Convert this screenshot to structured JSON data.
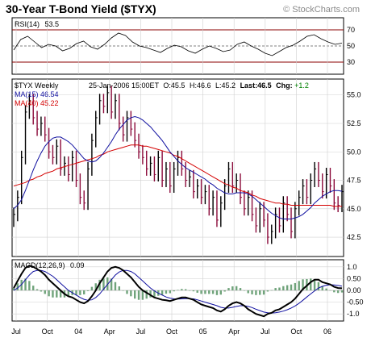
{
  "chart_data": {
    "type": "line",
    "title": "30-Year T-Bond Yield ($TYX)",
    "watermark": "© StockCharts.com",
    "x_ticks": [
      "Jul",
      "Oct",
      "04",
      "Apr",
      "Jul",
      "Oct",
      "05",
      "Apr",
      "Jul",
      "Oct",
      "06"
    ],
    "rsi": {
      "label": "RSI(14)",
      "value": "53.5",
      "ticks": [
        "70",
        "50",
        "30"
      ],
      "levels": [
        70,
        50,
        30
      ],
      "ylim": [
        15,
        85
      ],
      "values": [
        45,
        58,
        62,
        55,
        48,
        52,
        50,
        44,
        47,
        53,
        56,
        49,
        46,
        52,
        60,
        66,
        63,
        55,
        50,
        48,
        45,
        42,
        47,
        51,
        49,
        44,
        41,
        46,
        50,
        47,
        43,
        45,
        52,
        55,
        50,
        46,
        41,
        38,
        43,
        48,
        51,
        56,
        62,
        64,
        59,
        55,
        52,
        53.5
      ]
    },
    "price": {
      "label": "$TYX Weekly",
      "date": "25-Jan-2006 15:00ET",
      "open_label": "O:45.5",
      "high_label": "H:46.6",
      "low_label": "L:45.2",
      "last_label": "Last:46.5",
      "chg_label": "Chg:",
      "chg_value": "+1.2",
      "ma15_label": "MA(15) 46.54",
      "ma40_label": "MA(40) 45.22",
      "y_ticks": [
        "55.0",
        "52.5",
        "50.0",
        "47.5",
        "45.0",
        "42.5"
      ],
      "ylim": [
        40.8,
        56.4
      ],
      "close": [
        44.5,
        46.0,
        49.5,
        53.5,
        54.5,
        53.0,
        52.0,
        52.5,
        51.5,
        50.0,
        49.5,
        50.5,
        48.5,
        49.0,
        48.0,
        49.5,
        47.5,
        46.0,
        45.5,
        48.5,
        51.0,
        53.0,
        54.5,
        54.0,
        55.2,
        53.5,
        54.5,
        52.5,
        51.5,
        53.0,
        52.0,
        51.0,
        50.0,
        49.5,
        48.5,
        49.0,
        48.0,
        49.5,
        47.5,
        48.5,
        47.0,
        48.5,
        49.5,
        48.5,
        47.5,
        47.8,
        46.5,
        47.0,
        46.0,
        46.5,
        45.0,
        46.0,
        44.0,
        45.5,
        47.0,
        48.5,
        47.0,
        47.5,
        46.0,
        45.0,
        46.0,
        44.5,
        43.5,
        45.0,
        44.0,
        42.5,
        43.0,
        44.5,
        43.5,
        45.5,
        44.5,
        43.0,
        45.0,
        46.0,
        47.0,
        46.0,
        47.5,
        48.5,
        47.5,
        46.5,
        48.0,
        47.0,
        45.5,
        45.3,
        46.5
      ],
      "ma15": [
        45.0,
        45.3,
        45.8,
        46.6,
        47.5,
        48.4,
        49.2,
        49.9,
        50.5,
        50.9,
        51.2,
        51.3,
        51.3,
        51.1,
        50.9,
        50.6,
        50.2,
        49.8,
        49.4,
        49.2,
        49.1,
        49.2,
        49.5,
        49.9,
        50.4,
        50.9,
        51.5,
        52.0,
        52.4,
        52.8,
        53.0,
        53.1,
        53.0,
        52.8,
        52.5,
        52.2,
        51.8,
        51.4,
        51.0,
        50.5,
        50.0,
        49.6,
        49.2,
        48.9,
        48.6,
        48.4,
        48.2,
        48.0,
        47.8,
        47.6,
        47.3,
        47.1,
        46.8,
        46.6,
        46.4,
        46.3,
        46.3,
        46.4,
        46.4,
        46.4,
        46.3,
        46.1,
        45.8,
        45.5,
        45.2,
        44.9,
        44.6,
        44.4,
        44.2,
        44.1,
        44.1,
        44.1,
        44.2,
        44.3,
        44.5,
        44.8,
        45.1,
        45.5,
        45.8,
        46.1,
        46.3,
        46.5,
        46.6,
        46.6,
        46.54
      ],
      "ma40": [
        47.0,
        47.1,
        47.2,
        47.3,
        47.5,
        47.6,
        47.8,
        47.9,
        48.1,
        48.2,
        48.3,
        48.5,
        48.6,
        48.7,
        48.8,
        48.9,
        49.0,
        49.1,
        49.2,
        49.3,
        49.4,
        49.5,
        49.7,
        49.8,
        50.0,
        50.1,
        50.2,
        50.3,
        50.4,
        50.5,
        50.6,
        50.6,
        50.6,
        50.5,
        50.5,
        50.4,
        50.3,
        50.2,
        50.1,
        50.0,
        49.9,
        49.7,
        49.6,
        49.4,
        49.2,
        49.0,
        48.8,
        48.6,
        48.4,
        48.2,
        48.0,
        47.8,
        47.6,
        47.4,
        47.2,
        47.1,
        46.9,
        46.8,
        46.6,
        46.5,
        46.4,
        46.2,
        46.1,
        45.9,
        45.8,
        45.7,
        45.6,
        45.5,
        45.5,
        45.4,
        45.4,
        45.3,
        45.3,
        45.3,
        45.3,
        45.3,
        45.3,
        45.3,
        45.3,
        45.3,
        45.3,
        45.3,
        45.2,
        45.2,
        45.22
      ]
    },
    "macd": {
      "label": "MACD(12,26,9)",
      "value": "0.09",
      "y_ticks": [
        "1.0",
        "0.50",
        "0.00",
        "-0.50",
        "-1.0"
      ],
      "ylim": [
        -1.3,
        1.3
      ],
      "macd": [
        0.1,
        0.4,
        0.7,
        0.95,
        1.05,
        1.0,
        0.9,
        0.8,
        0.65,
        0.45,
        0.3,
        0.15,
        0.0,
        -0.15,
        -0.25,
        -0.3,
        -0.4,
        -0.5,
        -0.55,
        -0.45,
        -0.25,
        0.0,
        0.3,
        0.55,
        0.8,
        0.95,
        1.0,
        0.95,
        0.85,
        0.7,
        0.55,
        0.35,
        0.15,
        0.0,
        -0.1,
        -0.2,
        -0.3,
        -0.35,
        -0.4,
        -0.42,
        -0.45,
        -0.4,
        -0.35,
        -0.3,
        -0.3,
        -0.35,
        -0.4,
        -0.5,
        -0.6,
        -0.65,
        -0.7,
        -0.75,
        -0.85,
        -0.9,
        -0.8,
        -0.65,
        -0.55,
        -0.5,
        -0.55,
        -0.65,
        -0.8,
        -0.9,
        -1.0,
        -1.05,
        -1.1,
        -1.0,
        -0.95,
        -0.85,
        -0.8,
        -0.7,
        -0.6,
        -0.5,
        -0.35,
        -0.15,
        0.05,
        0.2,
        0.35,
        0.45,
        0.45,
        0.35,
        0.3,
        0.25,
        0.15,
        0.1,
        0.09
      ],
      "signal": [
        0.0,
        0.1,
        0.25,
        0.45,
        0.65,
        0.8,
        0.85,
        0.85,
        0.8,
        0.7,
        0.6,
        0.45,
        0.3,
        0.15,
        0.0,
        -0.1,
        -0.2,
        -0.3,
        -0.38,
        -0.42,
        -0.4,
        -0.3,
        -0.15,
        0.05,
        0.25,
        0.45,
        0.65,
        0.78,
        0.85,
        0.85,
        0.8,
        0.7,
        0.55,
        0.4,
        0.25,
        0.1,
        -0.02,
        -0.12,
        -0.2,
        -0.28,
        -0.33,
        -0.36,
        -0.37,
        -0.36,
        -0.35,
        -0.35,
        -0.36,
        -0.4,
        -0.45,
        -0.5,
        -0.55,
        -0.6,
        -0.65,
        -0.72,
        -0.75,
        -0.75,
        -0.72,
        -0.68,
        -0.65,
        -0.65,
        -0.68,
        -0.73,
        -0.8,
        -0.86,
        -0.92,
        -0.95,
        -0.96,
        -0.95,
        -0.92,
        -0.88,
        -0.82,
        -0.75,
        -0.66,
        -0.55,
        -0.42,
        -0.28,
        -0.15,
        -0.02,
        0.1,
        0.17,
        0.22,
        0.24,
        0.23,
        0.21,
        0.18
      ]
    }
  }
}
